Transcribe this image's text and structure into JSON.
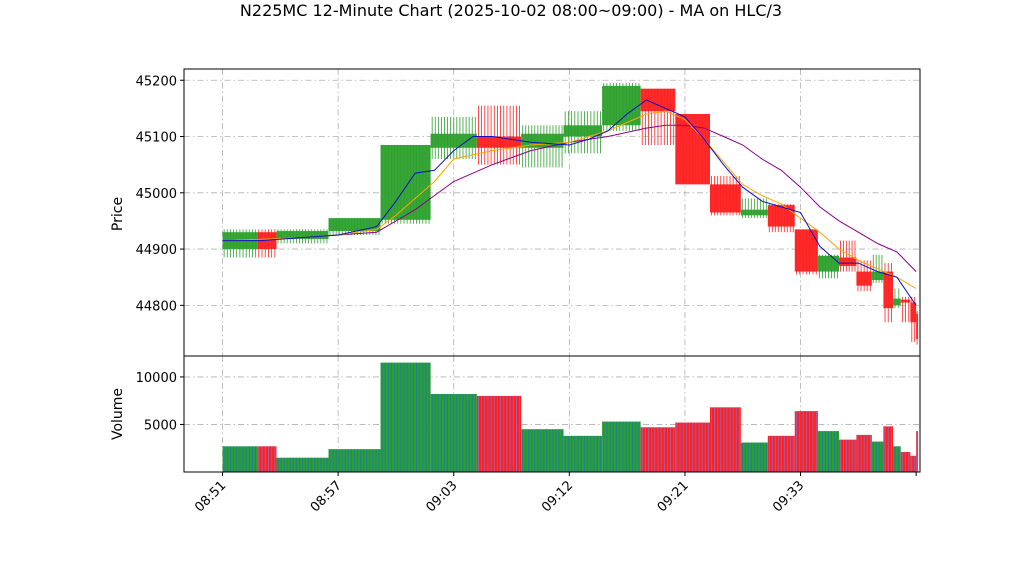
{
  "chart_data": {
    "title": "N225MC 12-Minute Chart (2025-10-02 08:00~09:00) - MA on HLC/3",
    "type": "candlestick",
    "price_panel": {
      "ylabel": "Price",
      "yticks": [
        44800,
        44900,
        45000,
        45100,
        45200
      ],
      "ylim": [
        44710,
        45220
      ],
      "grid": true
    },
    "volume_panel": {
      "ylabel": "Volume",
      "yticks": [
        5000,
        10000
      ],
      "ylim": [
        0,
        12200
      ],
      "grid": true
    },
    "x_tick_labels": [
      "08:51",
      "08:57",
      "09:03",
      "09:12",
      "09:21",
      "09:33"
    ],
    "x_tick_positions": [
      0,
      6,
      12,
      18,
      24,
      30
    ],
    "x_range": [
      -2,
      36.2
    ],
    "colors": {
      "up": "#2ca02c",
      "down": "#ff2020",
      "volume_up": "#1f77b4",
      "volume_down": "#9467bd",
      "ma_fast": "#1010c0",
      "ma_mid": "#ffa500",
      "ma_slow": "#8b008b"
    },
    "candles": [
      {
        "x0": 0,
        "x1": 1.8,
        "open": 44900,
        "close": 44930,
        "high": 44935,
        "low": 44885,
        "volume": 2700
      },
      {
        "x0": 1.8,
        "x1": 2.8,
        "open": 44930,
        "close": 44900,
        "high": 44935,
        "low": 44885,
        "volume": 2700
      },
      {
        "x0": 2.8,
        "x1": 5.5,
        "open": 44918,
        "close": 44932,
        "high": 44935,
        "low": 44910,
        "volume": 1500
      },
      {
        "x0": 5.5,
        "x1": 8.2,
        "open": 44932,
        "close": 44955,
        "high": 44955,
        "low": 44925,
        "volume": 2400
      },
      {
        "x0": 8.2,
        "x1": 10.8,
        "open": 44952,
        "close": 45085,
        "high": 45085,
        "low": 44945,
        "volume": 11500
      },
      {
        "x0": 10.8,
        "x1": 13.2,
        "open": 45080,
        "close": 45105,
        "high": 45135,
        "low": 45060,
        "volume": 8200
      },
      {
        "x0": 13.2,
        "x1": 15.5,
        "open": 45100,
        "close": 45080,
        "high": 45155,
        "low": 45050,
        "volume": 8000
      },
      {
        "x0": 15.5,
        "x1": 17.7,
        "open": 45080,
        "close": 45105,
        "high": 45120,
        "low": 45045,
        "volume": 4500
      },
      {
        "x0": 17.7,
        "x1": 19.7,
        "open": 45100,
        "close": 45120,
        "high": 45145,
        "low": 45070,
        "volume": 3800
      },
      {
        "x0": 19.7,
        "x1": 21.7,
        "open": 45120,
        "close": 45190,
        "high": 45195,
        "low": 45110,
        "volume": 5300
      },
      {
        "x0": 21.7,
        "x1": 23.5,
        "open": 45185,
        "close": 45145,
        "high": 45185,
        "low": 45085,
        "volume": 4700
      },
      {
        "x0": 23.5,
        "x1": 25.3,
        "open": 45140,
        "close": 45015,
        "high": 45140,
        "low": 45015,
        "volume": 5200
      },
      {
        "x0": 25.3,
        "x1": 26.9,
        "open": 45015,
        "close": 44965,
        "high": 45030,
        "low": 44960,
        "volume": 6800
      },
      {
        "x0": 26.9,
        "x1": 28.3,
        "open": 44960,
        "close": 44970,
        "high": 44990,
        "low": 44955,
        "volume": 3100
      },
      {
        "x0": 28.3,
        "x1": 29.7,
        "open": 44978,
        "close": 44940,
        "high": 44980,
        "low": 44930,
        "volume": 3800
      },
      {
        "x0": 29.7,
        "x1": 30.9,
        "open": 44935,
        "close": 44860,
        "high": 44935,
        "low": 44855,
        "volume": 6400
      },
      {
        "x0": 30.9,
        "x1": 32,
        "open": 44860,
        "close": 44888,
        "high": 44890,
        "low": 44848,
        "volume": 4300
      },
      {
        "x0": 32,
        "x1": 32.9,
        "open": 44885,
        "close": 44870,
        "high": 44915,
        "low": 44860,
        "volume": 3400
      },
      {
        "x0": 32.9,
        "x1": 33.7,
        "open": 44860,
        "close": 44835,
        "high": 44880,
        "low": 44825,
        "volume": 3900
      },
      {
        "x0": 33.7,
        "x1": 34.3,
        "open": 44845,
        "close": 44860,
        "high": 44890,
        "low": 44840,
        "volume": 3200
      },
      {
        "x0": 34.3,
        "x1": 34.8,
        "open": 44860,
        "close": 44795,
        "high": 44875,
        "low": 44770,
        "volume": 4800
      },
      {
        "x0": 34.8,
        "x1": 35.2,
        "open": 44800,
        "close": 44812,
        "high": 44830,
        "low": 44795,
        "volume": 2700
      },
      {
        "x0": 35.2,
        "x1": 35.7,
        "open": 44810,
        "close": 44805,
        "high": 44815,
        "low": 44770,
        "volume": 2100
      },
      {
        "x0": 35.7,
        "x1": 36.0,
        "open": 44805,
        "close": 44770,
        "high": 44815,
        "low": 44735,
        "volume": 1700
      },
      {
        "x0": 36.0,
        "x1": 36.1,
        "open": 44785,
        "close": 44740,
        "high": 44790,
        "low": 44730,
        "volume": 4300
      }
    ],
    "ma_fast": {
      "x": [
        0,
        2,
        4,
        6,
        8,
        9,
        10,
        11,
        12,
        13,
        14,
        16,
        18,
        19,
        20,
        21,
        22,
        23,
        24,
        25,
        26,
        27,
        28,
        29,
        30,
        31,
        32,
        33,
        34,
        35,
        36
      ],
      "y": [
        44915,
        44915,
        44920,
        44925,
        44940,
        44985,
        45035,
        45040,
        45075,
        45100,
        45100,
        45090,
        45085,
        45095,
        45110,
        45140,
        45165,
        45150,
        45135,
        45095,
        45050,
        45010,
        44985,
        44975,
        44965,
        44905,
        44875,
        44875,
        44860,
        44850,
        44800
      ]
    },
    "ma_mid": {
      "x": [
        0,
        4,
        6,
        8,
        9,
        10,
        11,
        12,
        14,
        16,
        18,
        20,
        21,
        22,
        23,
        24,
        25,
        26,
        27,
        28,
        29,
        30,
        31,
        32,
        33,
        34,
        35,
        36
      ],
      "y": [
        44915,
        44920,
        44925,
        44935,
        44960,
        44990,
        45020,
        45060,
        45075,
        45085,
        45090,
        45110,
        45125,
        45140,
        45145,
        45130,
        45095,
        45055,
        45015,
        44995,
        44980,
        44955,
        44930,
        44900,
        44880,
        44865,
        44850,
        44830
      ]
    },
    "ma_slow": {
      "x": [
        0,
        4,
        6,
        8,
        10,
        12,
        14,
        16,
        18,
        20,
        22,
        23,
        24,
        25,
        26,
        27,
        28,
        29,
        30,
        31,
        32,
        33,
        34,
        35,
        36
      ],
      "y": [
        44915,
        44920,
        44925,
        44930,
        44970,
        45020,
        45050,
        45075,
        45090,
        45100,
        45115,
        45120,
        45120,
        45115,
        45100,
        45085,
        45060,
        45040,
        45010,
        44975,
        44950,
        44930,
        44910,
        44895,
        44860
      ]
    }
  }
}
